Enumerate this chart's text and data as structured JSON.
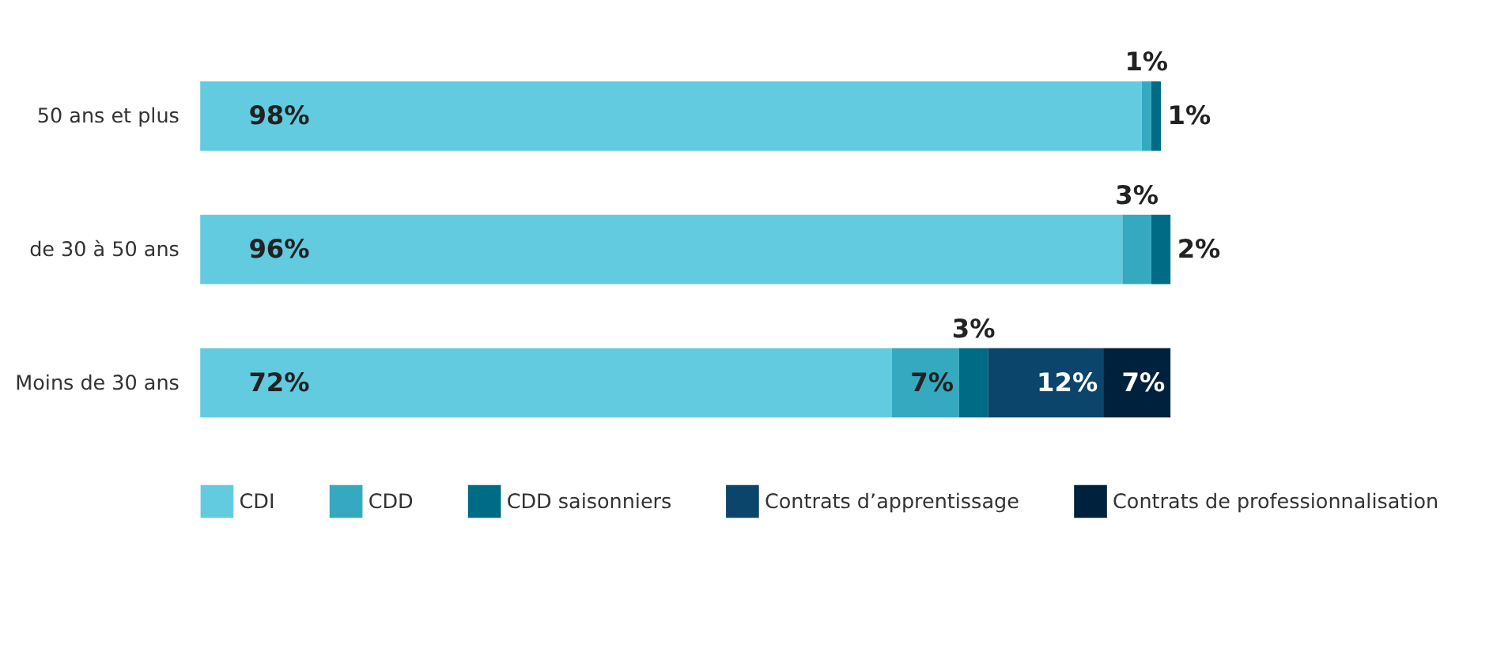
{
  "chart_data": {
    "type": "bar",
    "orientation": "horizontal",
    "stacked": true,
    "legend": "bottom",
    "categories": [
      "50 ans et plus",
      "de 30 à 50 ans",
      "Moins de 30 ans"
    ],
    "series": [
      {
        "name": "CDI",
        "color": "#62cbe0",
        "values": [
          98,
          96,
          72
        ],
        "value_labels": [
          "98%",
          "96%",
          "72%"
        ]
      },
      {
        "name": "CDD",
        "color": "#35a9bf",
        "values": [
          1,
          3,
          7
        ],
        "value_labels": [
          "1%",
          "3%",
          "7%"
        ]
      },
      {
        "name": "CDD saisonniers",
        "color": "#006b85",
        "values": [
          1,
          2,
          3
        ],
        "value_labels": [
          "1%",
          "2%",
          "3%"
        ]
      },
      {
        "name": "Contrats d’apprentissage",
        "color": "#0c456b",
        "values": [
          null,
          null,
          12
        ],
        "value_labels": [
          null,
          null,
          "12%"
        ]
      },
      {
        "name": "Contrats de professionnalisation",
        "color": "#00213d",
        "values": [
          null,
          null,
          7
        ],
        "value_labels": [
          null,
          null,
          "7%"
        ]
      }
    ]
  }
}
